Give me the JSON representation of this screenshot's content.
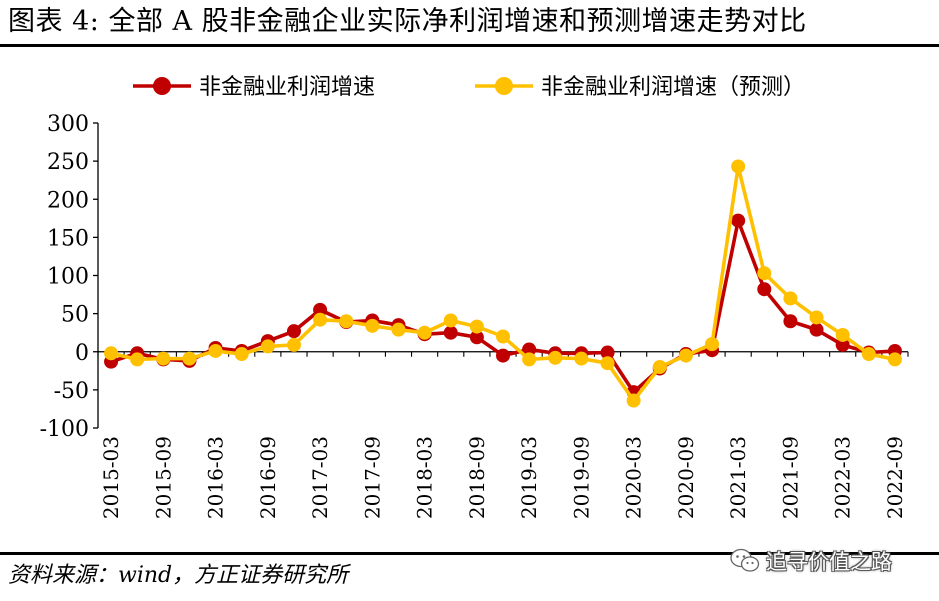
{
  "figure_title": "图表 4: 全部 A 股非金融企业实际净利润增速和预测增速走势对比",
  "source_note": "资料来源：wind，方正证券研究所",
  "watermark_text": "追寻价值之路",
  "watermark_icon": "wechat-icon",
  "colors": {
    "series_actual": "#C00000",
    "series_forecast": "#FFC000",
    "axis": "#000000"
  },
  "chart_data": {
    "type": "line",
    "title": "",
    "xlabel": "",
    "ylabel": "",
    "ylim": [
      -100,
      300
    ],
    "yticks": [
      -100,
      -50,
      0,
      50,
      100,
      150,
      200,
      250,
      300
    ],
    "ytick_labels": [
      "-100",
      "-50",
      "0",
      "50",
      "100",
      "150",
      "200",
      "250",
      "300"
    ],
    "legend_position": "top",
    "grid": false,
    "x": [
      "2015-03",
      "2015-06",
      "2015-09",
      "2015-12",
      "2016-03",
      "2016-06",
      "2016-09",
      "2016-12",
      "2017-03",
      "2017-06",
      "2017-09",
      "2017-12",
      "2018-03",
      "2018-06",
      "2018-09",
      "2018-12",
      "2019-03",
      "2019-06",
      "2019-09",
      "2019-12",
      "2020-03",
      "2020-06",
      "2020-09",
      "2020-12",
      "2021-03",
      "2021-06",
      "2021-09",
      "2021-12",
      "2022-03",
      "2022-06",
      "2022-09"
    ],
    "x_tick_labels": [
      "2015-03",
      "2015-09",
      "2016-03",
      "2016-09",
      "2017-03",
      "2017-09",
      "2018-03",
      "2018-09",
      "2019-03",
      "2019-09",
      "2020-03",
      "2020-09",
      "2021-03",
      "2021-09",
      "2022-03",
      "2022-09"
    ],
    "series": [
      {
        "name": "非金融业利润增速",
        "values": [
          -13,
          -2,
          -10,
          -12,
          5,
          1,
          14,
          27,
          55,
          39,
          41,
          35,
          23,
          25,
          19,
          -5,
          3,
          -2,
          -2,
          -1,
          -53,
          -22,
          -3,
          2,
          172,
          82,
          40,
          29,
          9,
          -1,
          1
        ]
      },
      {
        "name": "非金融业利润增速（预测）",
        "values": [
          -2,
          -10,
          -9,
          -9,
          1,
          -3,
          7,
          9,
          42,
          40,
          34,
          29,
          25,
          41,
          33,
          20,
          -10,
          -8,
          -9,
          -15,
          -64,
          -20,
          -5,
          10,
          243,
          103,
          70,
          45,
          22,
          -3,
          -10
        ]
      }
    ]
  }
}
